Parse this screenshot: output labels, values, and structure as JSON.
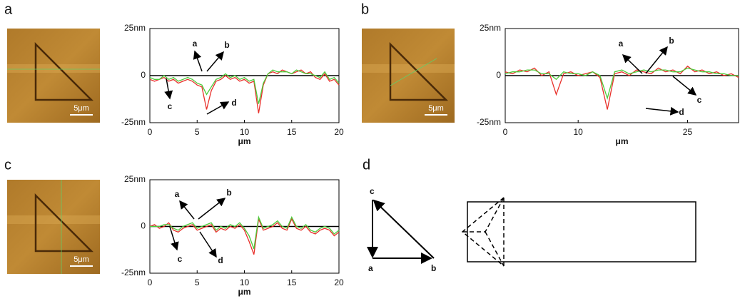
{
  "panel_labels": [
    "a",
    "b",
    "c",
    "d"
  ],
  "images": [
    {
      "scale_bar": "5μm"
    },
    {
      "scale_bar": "5μm"
    },
    {
      "scale_bar": "5μm"
    }
  ],
  "diagram": {
    "labels": [
      "c",
      "a",
      "b"
    ]
  },
  "chart_data": [
    {
      "type": "line",
      "x_label": "μm",
      "xlim": [
        0,
        20
      ],
      "xticks": [
        0,
        5,
        10,
        15,
        20
      ],
      "ylim": [
        -25,
        25
      ],
      "yticks": [
        {
          "value": 25,
          "label": "25nm"
        },
        0,
        {
          "value": -25,
          "label": "-25nm"
        }
      ],
      "x": [
        0,
        0.5,
        1,
        1.5,
        2,
        2.5,
        3,
        3.5,
        4,
        4.5,
        5,
        5.5,
        6,
        6.5,
        7,
        7.5,
        8,
        8.5,
        9,
        9.5,
        10,
        10.5,
        11,
        11.5,
        12,
        12.5,
        13,
        13.5,
        14,
        14.5,
        15,
        15.5,
        16,
        16.5,
        17,
        17.5,
        18,
        18.5,
        19,
        19.5,
        20
      ],
      "series": [
        {
          "color": "#e8302a",
          "values": [
            -2,
            -3,
            -2,
            -1,
            -3,
            -2,
            -4,
            -3,
            -2,
            -3,
            -5,
            -6,
            -18,
            -8,
            -3,
            -2,
            0,
            -2,
            -1,
            -3,
            -2,
            -4,
            -3,
            -20,
            -5,
            1,
            2,
            1,
            3,
            2,
            1,
            2,
            3,
            1,
            2,
            -1,
            -2,
            1,
            -3,
            -2,
            -5
          ]
        },
        {
          "color": "#4ccc3a",
          "values": [
            -1,
            -2,
            -2,
            0,
            -2,
            -1,
            -3,
            -2,
            -1,
            -2,
            -4,
            -5,
            -10,
            -6,
            -2,
            -1,
            1,
            -1,
            0,
            -2,
            -1,
            -3,
            -2,
            -15,
            -4,
            1,
            3,
            2,
            2,
            2,
            1,
            3,
            2,
            1,
            1,
            0,
            -1,
            2,
            -2,
            -1,
            -4
          ]
        }
      ],
      "annotations": [
        "a",
        "b",
        "c",
        "d"
      ]
    },
    {
      "type": "line",
      "x_label": "μm",
      "xlim": [
        0,
        32
      ],
      "xticks": [
        0,
        10,
        25
      ],
      "ylim": [
        -25,
        25
      ],
      "yticks": [
        {
          "value": 25,
          "label": "25nm"
        },
        0,
        {
          "value": -25,
          "label": "-25nm"
        }
      ],
      "x": [
        0,
        1,
        2,
        3,
        4,
        5,
        6,
        7,
        8,
        9,
        10,
        11,
        12,
        13,
        14,
        15,
        16,
        17,
        18,
        19,
        20,
        21,
        22,
        23,
        24,
        25,
        26,
        27,
        28,
        29,
        30,
        31,
        32
      ],
      "series": [
        {
          "color": "#e8302a",
          "values": [
            2,
            1,
            3,
            2,
            4,
            0,
            2,
            -10,
            1,
            2,
            0,
            1,
            2,
            -1,
            -18,
            1,
            2,
            0,
            3,
            2,
            1,
            4,
            2,
            3,
            1,
            5,
            2,
            3,
            1,
            2,
            0,
            1,
            -1
          ]
        },
        {
          "color": "#4ccc3a",
          "values": [
            1,
            2,
            2,
            3,
            3,
            1,
            1,
            -2,
            2,
            1,
            1,
            0,
            2,
            0,
            -12,
            2,
            3,
            1,
            2,
            3,
            2,
            3,
            3,
            2,
            2,
            4,
            3,
            2,
            2,
            1,
            1,
            0,
            0
          ]
        }
      ],
      "annotations": [
        "a",
        "b",
        "c",
        "d"
      ]
    },
    {
      "type": "line",
      "x_label": "μm",
      "xlim": [
        0,
        20
      ],
      "xticks": [
        0,
        5,
        10,
        15,
        20
      ],
      "ylim": [
        -25,
        25
      ],
      "yticks": [
        {
          "value": 25,
          "label": "25nm"
        },
        0,
        {
          "value": -25,
          "label": "-25nm"
        }
      ],
      "x": [
        0,
        0.5,
        1,
        1.5,
        2,
        2.5,
        3,
        3.5,
        4,
        4.5,
        5,
        5.5,
        6,
        6.5,
        7,
        7.5,
        8,
        8.5,
        9,
        9.5,
        10,
        10.5,
        11,
        11.5,
        12,
        12.5,
        13,
        13.5,
        14,
        14.5,
        15,
        15.5,
        16,
        16.5,
        17,
        17.5,
        18,
        18.5,
        19,
        19.5,
        20
      ],
      "series": [
        {
          "color": "#e8302a",
          "values": [
            0,
            1,
            -1,
            0,
            2,
            -2,
            -3,
            -1,
            0,
            1,
            -2,
            -1,
            0,
            1,
            -3,
            -1,
            -2,
            0,
            -1,
            1,
            -2,
            -8,
            -15,
            4,
            -2,
            -1,
            0,
            2,
            -1,
            -2,
            4,
            -1,
            -2,
            0,
            -3,
            -4,
            -2,
            -1,
            -2,
            -5,
            -3
          ]
        },
        {
          "color": "#4ccc3a",
          "values": [
            0,
            0,
            0,
            1,
            1,
            -1,
            -2,
            0,
            1,
            2,
            -1,
            0,
            1,
            2,
            -2,
            0,
            -1,
            1,
            0,
            2,
            -1,
            -5,
            -12,
            5,
            -1,
            0,
            1,
            3,
            0,
            -1,
            5,
            0,
            -1,
            1,
            -2,
            -3,
            -1,
            0,
            -1,
            -4,
            -2
          ]
        }
      ],
      "annotations": [
        "a",
        "b",
        "c",
        "d"
      ]
    }
  ]
}
